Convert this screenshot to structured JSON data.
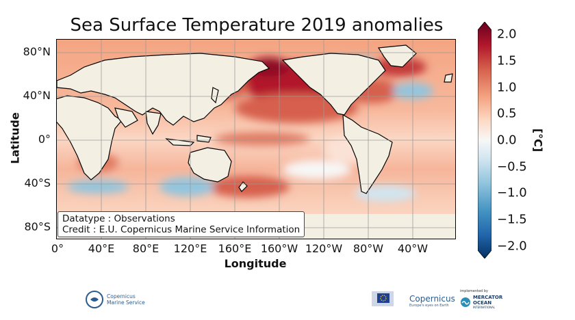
{
  "title": "Sea Surface Temperature 2019 anomalies",
  "axes": {
    "xlabel": "Longitude",
    "ylabel": "Latitude",
    "xticks": [
      "0°",
      "40°E",
      "80°E",
      "120°E",
      "160°E",
      "160°W",
      "120°W",
      "80°W",
      "40°W"
    ],
    "yticks": [
      "80°N",
      "40°N",
      "0°",
      "40°S",
      "80°S"
    ]
  },
  "info": {
    "line1": "Datatype : Observations",
    "line2": "Credit : E.U. Copernicus Marine Service Information"
  },
  "colorbar": {
    "label": "[°C]",
    "ticks": [
      "2.0",
      "1.5",
      "1.0",
      "0.5",
      "0.0",
      "−0.5",
      "−1.0",
      "−1.5",
      "−2.0"
    ],
    "colormap": [
      "#67001f",
      "#b2182b",
      "#d6604d",
      "#f4a582",
      "#fddbc7",
      "#f7f7f7",
      "#d1e5f0",
      "#92c5de",
      "#4393c3",
      "#2166ac",
      "#053061"
    ]
  },
  "logos": {
    "cms_line1": "Copernicus",
    "cms_line2": "Marine Service",
    "copernicus": "Copernicus",
    "copernicus_sub": "Europe's eyes on Earth",
    "implemented_by": "implemented by",
    "mercator_line1": "MERCATOR",
    "mercator_line2": "OCEAN",
    "mercator_line3": "INTERNATIONAL"
  },
  "colors": {
    "land": "#f3f0e3",
    "ocean_warm": "#f4a582",
    "ocean_hot": "#b2182b",
    "ocean_cool": "#92c5de",
    "brand_blue": "#2a5c8f"
  }
}
